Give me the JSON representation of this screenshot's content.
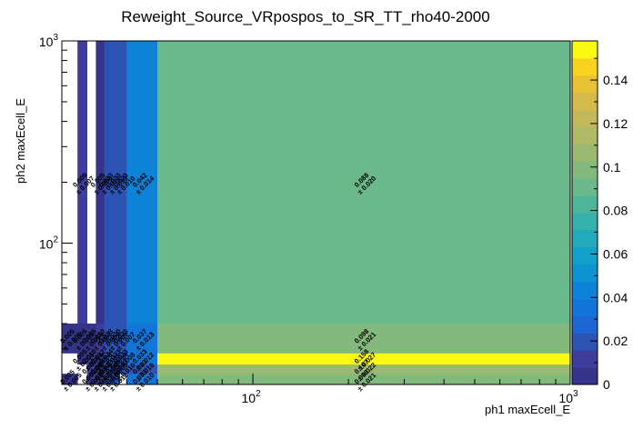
{
  "chart_data": {
    "type": "heatmap",
    "title": "Reweight_Source_VRpospos_to_SR_TT_rho40-2000",
    "xlabel": "ph1 maxEcell_E",
    "ylabel": "ph2 maxEcell_E",
    "x_scale": "log",
    "y_scale": "log",
    "x_edges": [
      25,
      28,
      30,
      32,
      34,
      36,
      38,
      40,
      50,
      1000
    ],
    "y_edges": [
      20,
      22.6,
      25.2,
      28.6,
      40,
      1000
    ],
    "xlim": [
      25,
      1000
    ],
    "ylim": [
      20,
      1000
    ],
    "x_tick_labels": [
      {
        "base": "10",
        "exp": "2"
      },
      {
        "base": "10",
        "exp": "3"
      }
    ],
    "y_tick_labels": [
      {
        "base": "10",
        "exp": "2"
      },
      {
        "base": "10",
        "exp": "3"
      }
    ],
    "colorbar": {
      "min": 0,
      "max": 0.158,
      "ticks": [
        "0",
        "0.02",
        "0.04",
        "0.06",
        "0.08",
        "0.1",
        "0.12",
        "0.14"
      ]
    },
    "palette": [
      "#35348a",
      "#3e3d9e",
      "#2d53b5",
      "#1f66d5",
      "#1275d9",
      "#0d82d6",
      "#0c93d2",
      "#11a0c9",
      "#21aabc",
      "#37b1ac",
      "#4fb69a",
      "#6bb88a",
      "#84b97d",
      "#9bb970",
      "#b0b965",
      "#c4b95a",
      "#d5bb4c",
      "#e8c234",
      "#f7d21f",
      "#f9f90f"
    ],
    "cells": [
      {
        "x": 0,
        "y": 0,
        "value": 0.005,
        "label": "0.005",
        "error": "± 0.005"
      },
      {
        "x": 0,
        "y": 3,
        "value": 0.005,
        "label": "0.005",
        "error": "± 0.005"
      },
      {
        "x": 1,
        "y": 2,
        "value": 0.005,
        "label": "0.005",
        "error": "± 0.005"
      },
      {
        "x": 1,
        "y": 3,
        "value": 0.005,
        "label": "0.005",
        "error": "± 0.005"
      },
      {
        "x": 1,
        "y": 4,
        "value": 0.009,
        "label": "0.009",
        "error": "± 0.007"
      },
      {
        "x": 2,
        "y": 0,
        "value": 0.009,
        "label": "0.009",
        "error": "± 0.005"
      },
      {
        "x": 2,
        "y": 1,
        "value": 0.009,
        "label": "0.009",
        "error": "± 0.005"
      },
      {
        "x": 2,
        "y": 2,
        "value": 0.01,
        "label": "0.010",
        "error": "± 0.005"
      },
      {
        "x": 2,
        "y": 3,
        "value": 0.005,
        "label": "0.005",
        "error": "± 0.005"
      },
      {
        "x": 3,
        "y": 0,
        "value": 0.015,
        "label": "0.015",
        "error": "± 0.009"
      },
      {
        "x": 3,
        "y": 1,
        "value": 0.005,
        "label": "0.005",
        "error": "± 0.005"
      },
      {
        "x": 3,
        "y": 2,
        "value": 0.012,
        "label": "0.012",
        "error": "± 0.008"
      },
      {
        "x": 3,
        "y": 3,
        "value": 0.01,
        "label": "0.010",
        "error": "± 0.007"
      },
      {
        "x": 3,
        "y": 4,
        "value": 0.005,
        "label": "0.005",
        "error": "± 0.003"
      },
      {
        "x": 4,
        "y": 0,
        "value": 0.023,
        "label": "0.023",
        "error": "± 0.010"
      },
      {
        "x": 4,
        "y": 1,
        "value": 0.023,
        "label": "0.023",
        "error": "± 0.011"
      },
      {
        "x": 4,
        "y": 2,
        "value": 0.024,
        "label": "0.024",
        "error": "± 0.011"
      },
      {
        "x": 4,
        "y": 3,
        "value": 0.023,
        "label": "0.023",
        "error": "± 0.009"
      },
      {
        "x": 4,
        "y": 4,
        "value": 0.023,
        "label": "0.023",
        "error": "± 0.012"
      },
      {
        "x": 5,
        "y": 0,
        "value": 0.019,
        "label": "0.019",
        "error": "± 0.012"
      },
      {
        "x": 5,
        "y": 1,
        "value": 0.009,
        "label": "0.009",
        "error": "± 0.005"
      },
      {
        "x": 5,
        "y": 2,
        "value": 0.023,
        "label": "0.023",
        "error": "± 0.014"
      },
      {
        "x": 5,
        "y": 3,
        "value": 0.02,
        "label": "0.020",
        "error": "± 0.009"
      },
      {
        "x": 5,
        "y": 4,
        "value": 0.023,
        "label": "0.023",
        "error": "± 0.013"
      },
      {
        "x": 6,
        "y": 1,
        "value": 0.023,
        "label": "0.023",
        "error": "± 0.010"
      },
      {
        "x": 6,
        "y": 2,
        "value": 0.023,
        "label": "0.023",
        "error": "± 0.008"
      },
      {
        "x": 6,
        "y": 3,
        "value": 0.023,
        "label": "0.023",
        "error": "± 0.007"
      },
      {
        "x": 6,
        "y": 4,
        "value": 0.023,
        "label": "0.023",
        "error": "± 0.010"
      },
      {
        "x": 7,
        "y": 0,
        "value": 0.033,
        "label": "0.033",
        "error": "± 0.010"
      },
      {
        "x": 7,
        "y": 1,
        "value": 0.023,
        "label": "0.023",
        "error": "± 0.010"
      },
      {
        "x": 7,
        "y": 2,
        "value": 0.033,
        "label": "0.033",
        "error": "± 0.012"
      },
      {
        "x": 7,
        "y": 3,
        "value": 0.037,
        "label": "0.037",
        "error": "± 0.013"
      },
      {
        "x": 7,
        "y": 4,
        "value": 0.042,
        "label": "0.042",
        "error": "± 0.014"
      },
      {
        "x": 8,
        "y": 0,
        "value": 0.098,
        "label": "0.098",
        "error": "± 0.021"
      },
      {
        "x": 8,
        "y": 1,
        "value": 0.107,
        "label": "0.107",
        "error": "± 0.022"
      },
      {
        "x": 8,
        "y": 2,
        "value": 0.158,
        "label": "0.158",
        "error": "± 0.027"
      },
      {
        "x": 8,
        "y": 3,
        "value": 0.098,
        "label": "0.098",
        "error": "± 0.021"
      },
      {
        "x": 8,
        "y": 4,
        "value": 0.088,
        "label": "0.088",
        "error": "± 0.020"
      }
    ]
  }
}
